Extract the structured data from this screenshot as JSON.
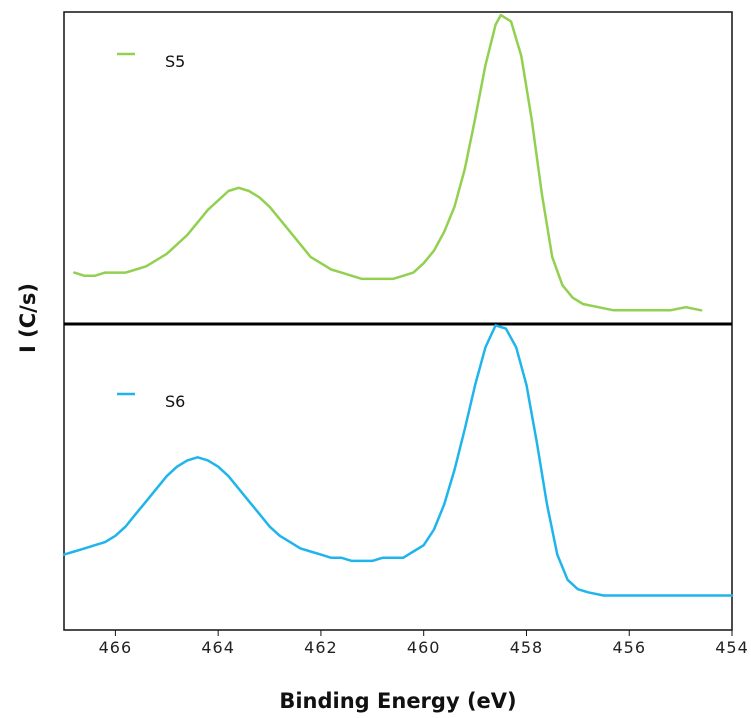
{
  "chart_data": {
    "type": "line",
    "xlabel": "Binding Energy (eV)",
    "ylabel": "I (C/s)",
    "xlim": [
      467,
      454
    ],
    "x_ticks": [
      "466",
      "464",
      "462",
      "460",
      "458",
      "456",
      "454"
    ],
    "x_tick_values": [
      466,
      464,
      462,
      460,
      458,
      456,
      454
    ],
    "grid": false,
    "panels": [
      {
        "legend": "S5",
        "color": "#92d050",
        "ylim": [
          0,
          1
        ],
        "points": [
          [
            466.8,
            0.17
          ],
          [
            466.6,
            0.16
          ],
          [
            466.4,
            0.16
          ],
          [
            466.2,
            0.17
          ],
          [
            466.0,
            0.17
          ],
          [
            465.8,
            0.17
          ],
          [
            465.6,
            0.18
          ],
          [
            465.4,
            0.19
          ],
          [
            465.2,
            0.21
          ],
          [
            465.0,
            0.23
          ],
          [
            464.8,
            0.26
          ],
          [
            464.6,
            0.29
          ],
          [
            464.4,
            0.33
          ],
          [
            464.2,
            0.37
          ],
          [
            464.0,
            0.4
          ],
          [
            463.8,
            0.43
          ],
          [
            463.6,
            0.44
          ],
          [
            463.4,
            0.43
          ],
          [
            463.2,
            0.41
          ],
          [
            463.0,
            0.38
          ],
          [
            462.8,
            0.34
          ],
          [
            462.6,
            0.3
          ],
          [
            462.4,
            0.26
          ],
          [
            462.2,
            0.22
          ],
          [
            462.0,
            0.2
          ],
          [
            461.8,
            0.18
          ],
          [
            461.6,
            0.17
          ],
          [
            461.4,
            0.16
          ],
          [
            461.2,
            0.15
          ],
          [
            461.0,
            0.15
          ],
          [
            460.8,
            0.15
          ],
          [
            460.6,
            0.15
          ],
          [
            460.4,
            0.16
          ],
          [
            460.2,
            0.17
          ],
          [
            460.0,
            0.2
          ],
          [
            459.8,
            0.24
          ],
          [
            459.6,
            0.3
          ],
          [
            459.4,
            0.38
          ],
          [
            459.2,
            0.5
          ],
          [
            459.0,
            0.66
          ],
          [
            458.8,
            0.83
          ],
          [
            458.6,
            0.96
          ],
          [
            458.5,
            0.99
          ],
          [
            458.3,
            0.97
          ],
          [
            458.1,
            0.86
          ],
          [
            457.9,
            0.66
          ],
          [
            457.7,
            0.42
          ],
          [
            457.5,
            0.22
          ],
          [
            457.3,
            0.13
          ],
          [
            457.1,
            0.09
          ],
          [
            456.9,
            0.07
          ],
          [
            456.6,
            0.06
          ],
          [
            456.3,
            0.05
          ],
          [
            456.0,
            0.05
          ],
          [
            455.6,
            0.05
          ],
          [
            455.2,
            0.05
          ],
          [
            454.9,
            0.06
          ],
          [
            454.6,
            0.05
          ]
        ]
      },
      {
        "legend": "S6",
        "color": "#1fb5ec",
        "ylim": [
          0,
          1
        ],
        "points": [
          [
            467.0,
            0.24
          ],
          [
            466.8,
            0.25
          ],
          [
            466.6,
            0.26
          ],
          [
            466.4,
            0.27
          ],
          [
            466.2,
            0.28
          ],
          [
            466.0,
            0.3
          ],
          [
            465.8,
            0.33
          ],
          [
            465.6,
            0.37
          ],
          [
            465.4,
            0.41
          ],
          [
            465.2,
            0.45
          ],
          [
            465.0,
            0.49
          ],
          [
            464.8,
            0.52
          ],
          [
            464.6,
            0.54
          ],
          [
            464.4,
            0.55
          ],
          [
            464.2,
            0.54
          ],
          [
            464.0,
            0.52
          ],
          [
            463.8,
            0.49
          ],
          [
            463.6,
            0.45
          ],
          [
            463.4,
            0.41
          ],
          [
            463.2,
            0.37
          ],
          [
            463.0,
            0.33
          ],
          [
            462.8,
            0.3
          ],
          [
            462.6,
            0.28
          ],
          [
            462.4,
            0.26
          ],
          [
            462.2,
            0.25
          ],
          [
            462.0,
            0.24
          ],
          [
            461.8,
            0.23
          ],
          [
            461.6,
            0.23
          ],
          [
            461.4,
            0.22
          ],
          [
            461.2,
            0.22
          ],
          [
            461.0,
            0.22
          ],
          [
            460.8,
            0.23
          ],
          [
            460.6,
            0.23
          ],
          [
            460.4,
            0.23
          ],
          [
            460.2,
            0.25
          ],
          [
            460.0,
            0.27
          ],
          [
            459.8,
            0.32
          ],
          [
            459.6,
            0.4
          ],
          [
            459.4,
            0.51
          ],
          [
            459.2,
            0.64
          ],
          [
            459.0,
            0.78
          ],
          [
            458.8,
            0.9
          ],
          [
            458.6,
            0.97
          ],
          [
            458.4,
            0.96
          ],
          [
            458.2,
            0.9
          ],
          [
            458.0,
            0.78
          ],
          [
            457.8,
            0.6
          ],
          [
            457.6,
            0.4
          ],
          [
            457.4,
            0.24
          ],
          [
            457.2,
            0.16
          ],
          [
            457.0,
            0.13
          ],
          [
            456.8,
            0.12
          ],
          [
            456.5,
            0.11
          ],
          [
            456.2,
            0.11
          ],
          [
            455.8,
            0.11
          ],
          [
            455.4,
            0.11
          ],
          [
            455.0,
            0.11
          ],
          [
            454.6,
            0.11
          ],
          [
            454.3,
            0.11
          ],
          [
            454.0,
            0.11
          ]
        ]
      }
    ]
  }
}
